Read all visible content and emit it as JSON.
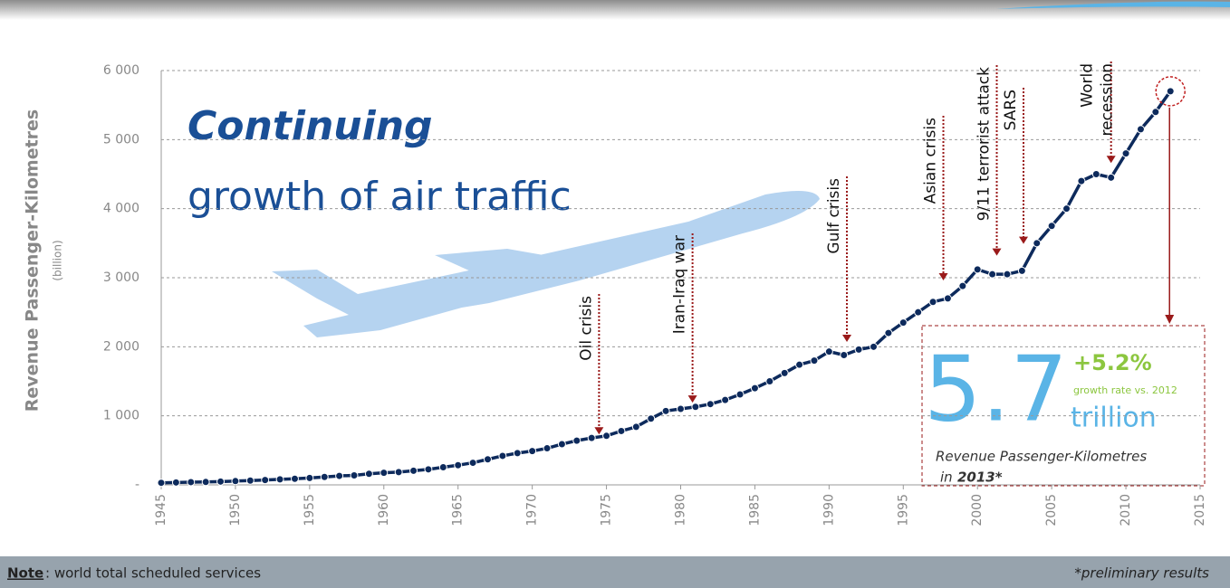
{
  "chart_data": {
    "type": "line",
    "title": "Continuing",
    "subtitle": "growth of air traffic",
    "y_label": "Revenue Passenger-Kilometres",
    "y_unit": "(billion)",
    "x": [
      1945,
      1946,
      1947,
      1948,
      1949,
      1950,
      1951,
      1952,
      1953,
      1954,
      1955,
      1956,
      1957,
      1958,
      1959,
      1960,
      1961,
      1962,
      1963,
      1964,
      1965,
      1966,
      1967,
      1968,
      1969,
      1970,
      1971,
      1972,
      1973,
      1974,
      1975,
      1976,
      1977,
      1978,
      1979,
      1980,
      1981,
      1982,
      1983,
      1984,
      1985,
      1986,
      1987,
      1988,
      1989,
      1990,
      1991,
      1992,
      1993,
      1994,
      1995,
      1996,
      1997,
      1998,
      1999,
      2000,
      2001,
      2002,
      2003,
      2004,
      2005,
      2006,
      2007,
      2008,
      2009,
      2010,
      2011,
      2012,
      2013
    ],
    "series": [
      {
        "color": "#0d2a5c",
        "values": [
          30,
          35,
          40,
          42,
          48,
          55,
          62,
          70,
          80,
          88,
          100,
          115,
          130,
          138,
          160,
          175,
          185,
          205,
          225,
          255,
          285,
          320,
          370,
          420,
          460,
          490,
          530,
          590,
          640,
          680,
          710,
          780,
          840,
          960,
          1070,
          1100,
          1130,
          1170,
          1230,
          1310,
          1400,
          1500,
          1620,
          1740,
          1800,
          1930,
          1880,
          1960,
          2000,
          2200,
          2350,
          2500,
          2650,
          2700,
          2880,
          3120,
          3050,
          3050,
          3100,
          3500,
          3750,
          4000,
          4400,
          4500,
          4450,
          4800,
          5150,
          5400,
          5700
        ]
      }
    ],
    "xlim": [
      1945,
      2015
    ],
    "xticks": [
      1945,
      1950,
      1955,
      1960,
      1965,
      1970,
      1975,
      1980,
      1985,
      1990,
      1995,
      2000,
      2005,
      2010,
      2015
    ],
    "ylim": [
      0,
      6000
    ],
    "yticks": [
      {
        "value": 0,
        "label": "-"
      },
      {
        "value": 1000,
        "label": "1 000"
      },
      {
        "value": 2000,
        "label": "2 000"
      },
      {
        "value": 3000,
        "label": "3 000"
      },
      {
        "value": 4000,
        "label": "4 000"
      },
      {
        "value": 5000,
        "label": "5 000"
      },
      {
        "value": 6000,
        "label": "6 000"
      }
    ],
    "grid": true,
    "annotations": [
      {
        "text": "Oil crisis",
        "x": 1974.5,
        "y": 730
      },
      {
        "text": "Iran-Iraq war",
        "x": 1980.8,
        "y": 1190
      },
      {
        "text": "Gulf crisis",
        "x": 1991.2,
        "y": 2070
      },
      {
        "text": "Asian crisis",
        "x": 1997.7,
        "y": 2960
      },
      {
        "text": "9/11 terrorist attack",
        "x": 2001.3,
        "y": 3320
      },
      {
        "text": "SARS",
        "x": 2003.1,
        "y": 3490
      },
      {
        "text": [
          "World",
          "recession"
        ],
        "x": 2009,
        "y": 4660
      }
    ],
    "callout": {
      "big": "5.7",
      "unit": "trillion",
      "growth": "+5.2%",
      "growth_label": "growth rate vs. 2012",
      "caption": "Revenue Passenger-Kilometres",
      "caption_in": "in",
      "caption_year": "2013*"
    },
    "footer": {
      "note_label": "Note",
      "note": ": world total scheduled services",
      "right": "*preliminary results"
    }
  }
}
